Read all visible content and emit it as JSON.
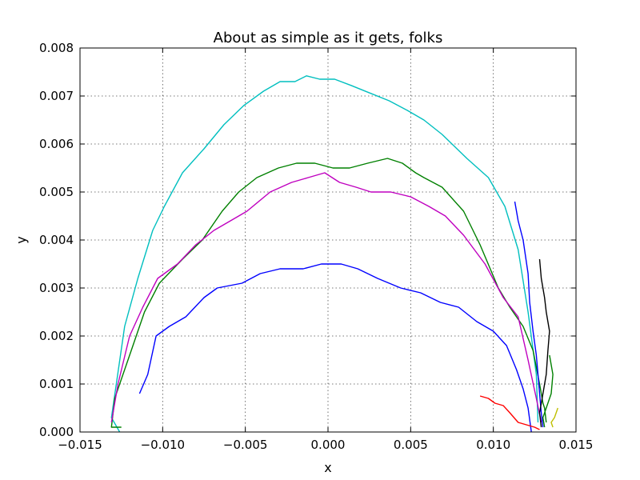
{
  "chart_data": {
    "type": "line",
    "title": "About as simple as it gets, folks",
    "xlabel": "x",
    "ylabel": "y",
    "xlim": [
      -0.015,
      0.015
    ],
    "ylim": [
      0.0,
      0.008
    ],
    "grid": true,
    "xticks": [
      -0.015,
      -0.01,
      -0.005,
      0.0,
      0.005,
      0.01,
      0.015
    ],
    "xtick_labels": [
      "−0.015",
      "−0.010",
      "−0.005",
      "0.000",
      "0.005",
      "0.010",
      "0.015"
    ],
    "yticks": [
      0.0,
      0.001,
      0.002,
      0.003,
      0.004,
      0.005,
      0.006,
      0.007,
      0.008
    ],
    "ytick_labels": [
      "0.000",
      "0.001",
      "0.002",
      "0.003",
      "0.004",
      "0.005",
      "0.006",
      "0.007",
      "0.008"
    ],
    "series": [
      {
        "color": "#00bfbf",
        "x": [
          -0.0126,
          -0.0131,
          -0.0123,
          -0.0115,
          -0.0106,
          -0.0099,
          -0.0088,
          -0.0075,
          -0.0063,
          -0.0051,
          -0.0039,
          -0.0029,
          -0.002,
          -0.0013,
          -0.0005,
          0.0004,
          0.0014,
          0.0024,
          0.0037,
          0.0048,
          0.0058,
          0.0069,
          0.0084,
          0.0097,
          0.0107,
          0.0115,
          0.0121,
          0.0126,
          0.0127
        ],
        "y": [
          0.0,
          0.0003,
          0.0022,
          0.0032,
          0.0042,
          0.0047,
          0.0054,
          0.0059,
          0.0064,
          0.0068,
          0.0071,
          0.0073,
          0.0073,
          0.00742,
          0.00735,
          0.00735,
          0.00722,
          0.00708,
          0.0069,
          0.0067,
          0.0065,
          0.0062,
          0.0057,
          0.0053,
          0.0047,
          0.0038,
          0.0025,
          0.0012,
          0.0002
        ]
      },
      {
        "color": "#008000",
        "x": [
          -0.0125,
          -0.0131,
          -0.0129,
          -0.0119,
          -0.0111,
          -0.0102,
          -0.0088,
          -0.0076,
          -0.0064,
          -0.0054,
          -0.0043,
          -0.003,
          -0.0019,
          -0.0008,
          0.0003,
          0.0013,
          0.0024,
          0.0036,
          0.0045,
          0.0053,
          0.0058,
          0.0069,
          0.0082,
          0.0092,
          0.0103,
          0.011,
          0.0118,
          0.0124,
          0.0128,
          0.013,
          0.0131,
          0.0132
        ],
        "y": [
          0.0001,
          0.0001,
          0.0007,
          0.0017,
          0.0025,
          0.0031,
          0.0036,
          0.004,
          0.0046,
          0.005,
          0.0053,
          0.0055,
          0.0056,
          0.0056,
          0.0055,
          0.0055,
          0.0056,
          0.0057,
          0.0056,
          0.0054,
          0.0053,
          0.0051,
          0.0046,
          0.0039,
          0.003,
          0.0026,
          0.0022,
          0.0017,
          0.001,
          0.0006,
          0.0005,
          0.0002
        ]
      },
      {
        "color": "#bf00bf",
        "x": [
          -0.0131,
          -0.0127,
          -0.012,
          -0.0112,
          -0.0103,
          -0.0091,
          -0.008,
          -0.0069,
          -0.0059,
          -0.0049,
          -0.0035,
          -0.0022,
          -0.0012,
          -0.0002,
          0.0007,
          0.0017,
          0.0026,
          0.0038,
          0.005,
          0.0061,
          0.0071,
          0.0082,
          0.0095,
          0.0106,
          0.0115,
          0.0121,
          0.0126,
          0.0129
        ],
        "y": [
          0.0002,
          0.001,
          0.002,
          0.0026,
          0.0032,
          0.0035,
          0.0039,
          0.0042,
          0.0044,
          0.0046,
          0.005,
          0.0052,
          0.0053,
          0.0054,
          0.0052,
          0.0051,
          0.005,
          0.005,
          0.0049,
          0.0047,
          0.0045,
          0.0041,
          0.0035,
          0.0028,
          0.0024,
          0.0015,
          0.0007,
          0.0002
        ]
      },
      {
        "color": "#0000ff",
        "x": [
          -0.0114,
          -0.0109,
          -0.0104,
          -0.0096,
          -0.0086,
          -0.0075,
          -0.0067,
          -0.0052,
          -0.0041,
          -0.0029,
          -0.0015,
          -0.0004,
          0.0008,
          0.0018,
          0.003,
          0.0044,
          0.0056,
          0.0068,
          0.0079,
          0.009,
          0.01,
          0.0108,
          0.0114,
          0.0118,
          0.0121,
          0.0123
        ],
        "y": [
          0.0008,
          0.0012,
          0.002,
          0.0022,
          0.0024,
          0.0028,
          0.003,
          0.0031,
          0.0033,
          0.0034,
          0.0034,
          0.0035,
          0.0035,
          0.0034,
          0.0032,
          0.003,
          0.0029,
          0.0027,
          0.0026,
          0.0023,
          0.0021,
          0.0018,
          0.0013,
          0.0009,
          0.0005,
          0.0
        ]
      },
      {
        "color": "#0000ff",
        "x": [
          0.0113,
          0.0115,
          0.0118,
          0.0121,
          0.0122,
          0.0124,
          0.0126,
          0.0127,
          0.0128,
          0.0129,
          0.013
        ],
        "y": [
          0.0048,
          0.0044,
          0.004,
          0.0033,
          0.0027,
          0.0021,
          0.0016,
          0.0012,
          0.0008,
          0.0004,
          0.0001
        ]
      },
      {
        "color": "#000000",
        "x": [
          0.0128,
          0.0129,
          0.0131,
          0.0132,
          0.0134,
          0.0133,
          0.0132,
          0.013,
          0.0128,
          0.0129
        ],
        "y": [
          0.0036,
          0.0032,
          0.0028,
          0.0025,
          0.0021,
          0.0017,
          0.0012,
          0.0008,
          0.0004,
          0.0001
        ]
      },
      {
        "color": "#008000",
        "x": [
          0.0134,
          0.0136,
          0.0135,
          0.0132,
          0.013,
          0.0131
        ],
        "y": [
          0.0016,
          0.0012,
          0.0008,
          0.0005,
          0.0003,
          0.0001
        ]
      },
      {
        "color": "#bfbf00",
        "x": [
          0.0139,
          0.0137,
          0.0135,
          0.0136
        ],
        "y": [
          0.0005,
          0.0003,
          0.0002,
          0.0001
        ]
      },
      {
        "color": "#ff0000",
        "x": [
          0.0092,
          0.0097,
          0.0101,
          0.0106,
          0.011,
          0.0115,
          0.012,
          0.0125,
          0.0128
        ],
        "y": [
          0.00075,
          0.0007,
          0.0006,
          0.00055,
          0.0004,
          0.0002,
          0.00015,
          0.0001,
          5e-05
        ]
      }
    ]
  }
}
